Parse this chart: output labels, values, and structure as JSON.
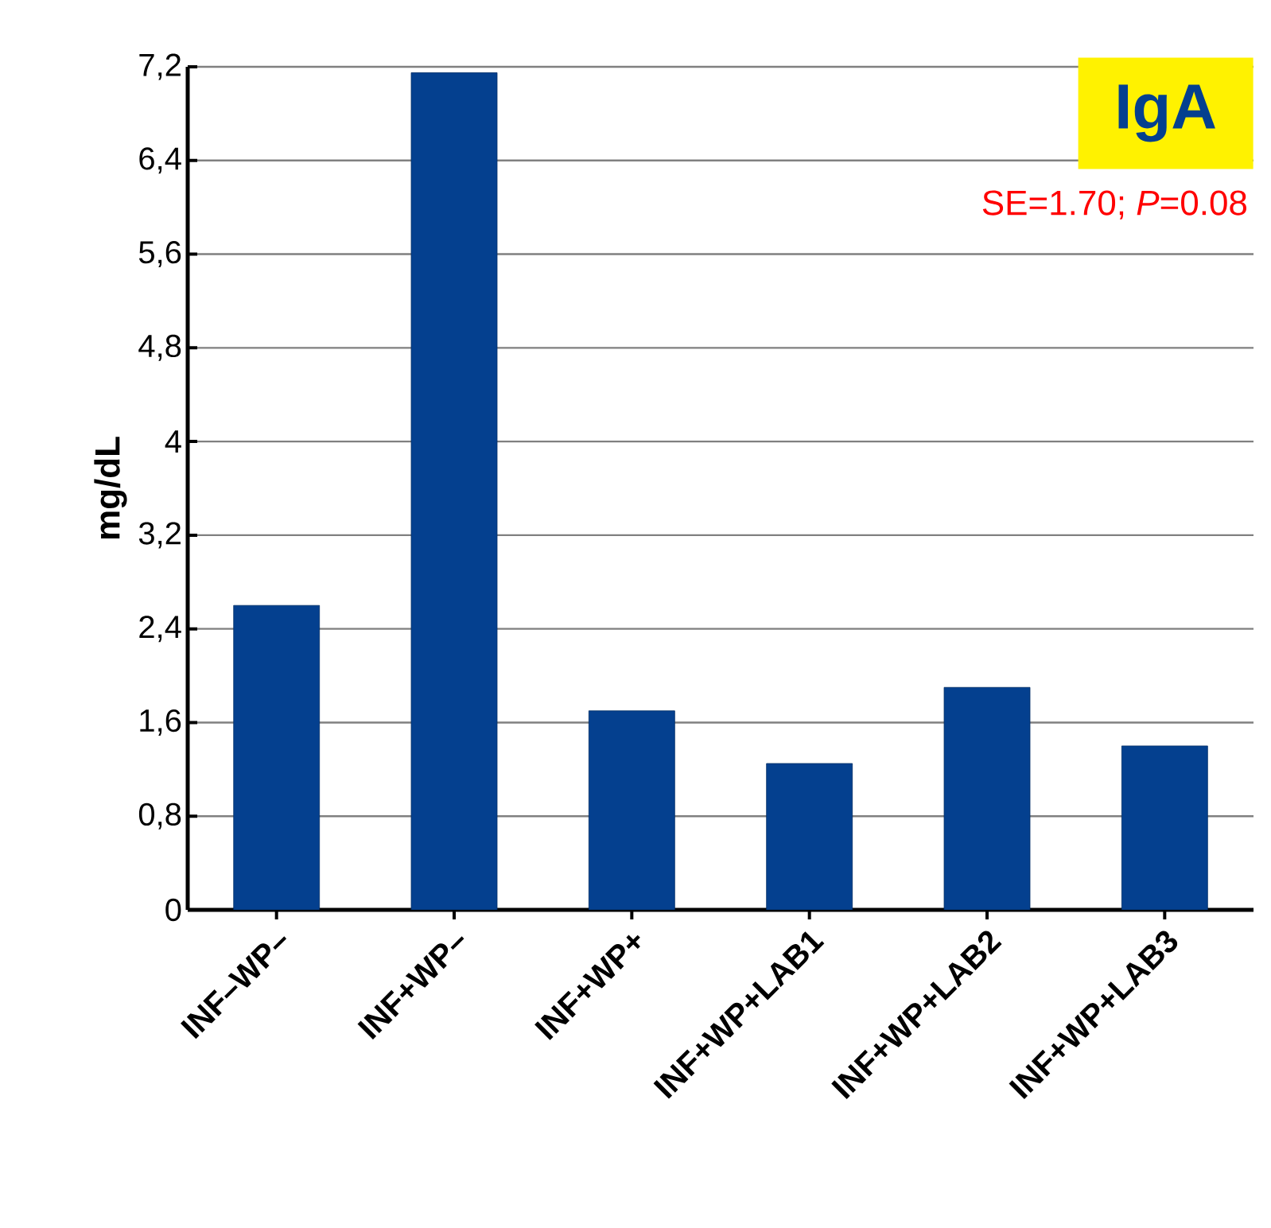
{
  "chart_data": {
    "type": "bar",
    "title": "IgA",
    "ylabel": "mg/dL",
    "annotations": [
      "SE=1.70; *P*=0.08"
    ],
    "categories": [
      "INF–WP–",
      "INF+WP–",
      "INF+WP+",
      "INF+WP+LAB1",
      "INF+WP+LAB2",
      "INF+WP+LAB3"
    ],
    "values": [
      2.6,
      7.15,
      1.7,
      1.25,
      1.9,
      1.4
    ],
    "color": "#04408f",
    "ylim": [
      0,
      7.2
    ],
    "yticks": [
      0,
      {
        "value": 0.8,
        "label": "0,8"
      },
      {
        "value": 1.6,
        "label": "1,6"
      },
      {
        "value": 2.4,
        "label": "2,4"
      },
      {
        "value": 3.2,
        "label": "3,2"
      },
      4,
      {
        "value": 4.8,
        "label": "4,8"
      },
      {
        "value": 5.6,
        "label": "5,6"
      },
      {
        "value": 6.4,
        "label": "6,4"
      },
      {
        "value": 7.2,
        "label": "7,2"
      }
    ],
    "grid": "y"
  }
}
